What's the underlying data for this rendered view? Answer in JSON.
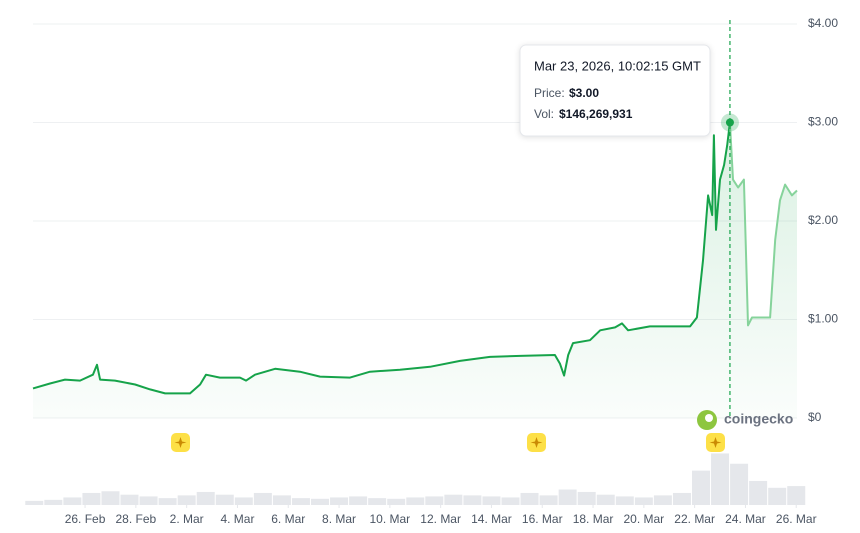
{
  "chart_data": {
    "type": "line",
    "x": [
      -2.05,
      -1.38,
      -0.79,
      -0.2,
      0.31,
      0.47,
      0.59,
      1.18,
      1.97,
      2.56,
      3.15,
      4.13,
      4.53,
      4.76,
      5.31,
      6.1,
      6.34,
      6.69,
      7.48,
      8.46,
      9.25,
      10.43,
      11.22,
      12.4,
      13.58,
      14.76,
      15.94,
      17.13,
      18.5,
      18.7,
      18.86,
      19.02,
      19.21,
      19.88,
      20.28,
      20.87,
      21.14,
      21.38,
      22.24,
      23.82,
      24.09,
      24.33,
      24.53,
      24.69,
      24.76,
      24.84,
      25.0,
      25.16,
      25.28,
      25.39,
      25.51,
      25.71,
      25.94,
      26.02,
      26.1,
      26.26,
      26.97,
      27.17,
      27.36,
      27.56,
      27.83,
      28.03
    ],
    "values": [
      0.3,
      0.35,
      0.39,
      0.38,
      0.44,
      0.54,
      0.39,
      0.38,
      0.34,
      0.29,
      0.25,
      0.25,
      0.34,
      0.44,
      0.41,
      0.41,
      0.38,
      0.44,
      0.5,
      0.47,
      0.42,
      0.41,
      0.47,
      0.49,
      0.52,
      0.58,
      0.62,
      0.63,
      0.64,
      0.55,
      0.43,
      0.64,
      0.76,
      0.79,
      0.89,
      0.92,
      0.96,
      0.89,
      0.93,
      0.93,
      1.02,
      1.6,
      2.26,
      2.06,
      2.87,
      1.91,
      2.42,
      2.57,
      2.77,
      3.0,
      2.42,
      2.34,
      2.42,
      1.71,
      0.94,
      1.02,
      1.02,
      1.81,
      2.21,
      2.37,
      2.26,
      2.31
    ],
    "color": "#16a34a",
    "after_color": "#86d39b",
    "hover_index": 49,
    "xlim": [
      -2.05,
      28.03
    ],
    "xticks": [
      {
        "value": 0,
        "label": "26. Feb"
      },
      {
        "value": 2,
        "label": "28. Feb"
      },
      {
        "value": 4,
        "label": "2. Mar"
      },
      {
        "value": 6,
        "label": "4. Mar"
      },
      {
        "value": 8,
        "label": "6. Mar"
      },
      {
        "value": 10,
        "label": "8. Mar"
      },
      {
        "value": 12,
        "label": "10. Mar"
      },
      {
        "value": 14,
        "label": "12. Mar"
      },
      {
        "value": 16,
        "label": "14. Mar"
      },
      {
        "value": 18,
        "label": "16. Mar"
      },
      {
        "value": 20,
        "label": "18. Mar"
      },
      {
        "value": 22,
        "label": "20. Mar"
      },
      {
        "value": 24,
        "label": "22. Mar"
      },
      {
        "value": 26,
        "label": "24. Mar"
      },
      {
        "value": 28,
        "label": "26. Mar"
      }
    ],
    "ylim": [
      0,
      4
    ],
    "yticks": [
      {
        "value": 0,
        "label": "$0"
      },
      {
        "value": 1,
        "label": "$1.00"
      },
      {
        "value": 2,
        "label": "$2.00"
      },
      {
        "value": 3,
        "label": "$3.00"
      },
      {
        "value": 4,
        "label": "$4.00"
      }
    ],
    "grid": true,
    "volume": {
      "color": "#e5e7eb",
      "x": [
        -2,
        -1.25,
        -0.5,
        0.25,
        1,
        1.75,
        2.5,
        3.25,
        4,
        4.75,
        5.5,
        6.25,
        7,
        7.75,
        8.5,
        9.25,
        10,
        10.75,
        11.5,
        12.25,
        13,
        13.75,
        14.5,
        15.25,
        16,
        16.75,
        17.5,
        18.25,
        19,
        19.75,
        20.5,
        21.25,
        22,
        22.75,
        23.5,
        24.25,
        25,
        25.75,
        26.5,
        27.25,
        28
      ],
      "values": [
        12000000,
        15000000,
        22000000,
        35000000,
        40000000,
        30000000,
        25000000,
        20000000,
        28000000,
        38000000,
        30000000,
        22000000,
        35000000,
        28000000,
        20000000,
        18000000,
        22000000,
        25000000,
        20000000,
        18000000,
        22000000,
        25000000,
        30000000,
        28000000,
        25000000,
        22000000,
        35000000,
        28000000,
        45000000,
        38000000,
        30000000,
        25000000,
        22000000,
        28000000,
        35000000,
        100000000,
        150000000,
        120000000,
        70000000,
        50000000,
        55000000
      ],
      "vlim": [
        0,
        160000000
      ]
    },
    "tooltip": {
      "date": "Mar 23, 2026, 10:02:15 GMT",
      "price_label": "Price:",
      "price": "$3.00",
      "vol_label": "Vol:",
      "vol": "$146,269,931"
    },
    "watermark": "coingecko"
  }
}
